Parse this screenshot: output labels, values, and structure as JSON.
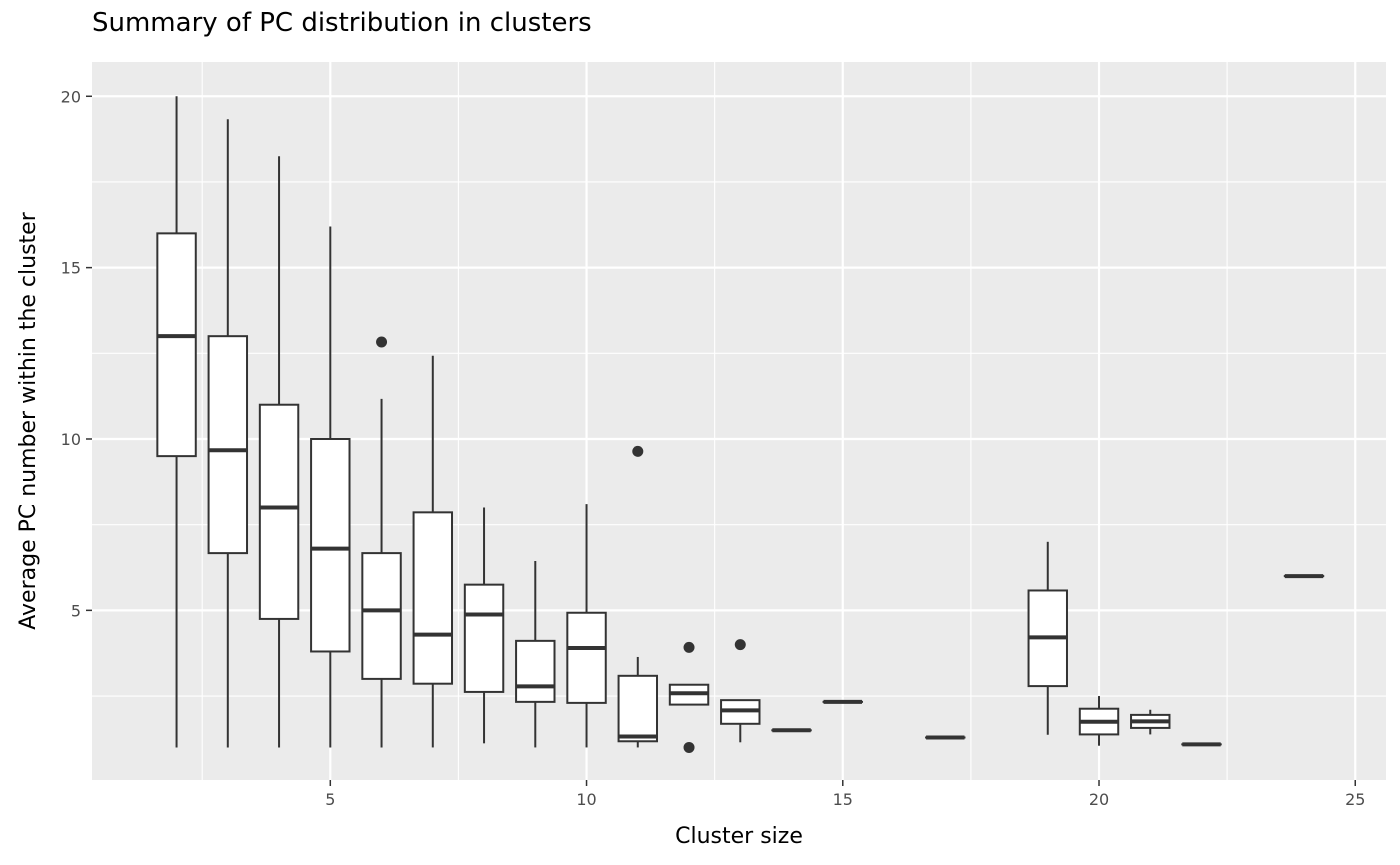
{
  "chart_data": {
    "type": "boxplot",
    "title": "Summary of PC distribution in clusters",
    "xlabel": "Cluster size",
    "ylabel": "Average PC number within the cluster",
    "xlim": [
      0.35,
      25.6
    ],
    "ylim": [
      0.05,
      21.0
    ],
    "xticks": [
      5,
      10,
      15,
      20,
      25
    ],
    "yticks": [
      5,
      10,
      15,
      20
    ],
    "grid": true,
    "panel_background": "#ebebeb",
    "grid_color": "#ffffff",
    "box_fill": "#ffffff",
    "box_line": "#333333",
    "boxes": [
      {
        "x": 2,
        "whisker_low": 1.0,
        "q1": 9.5,
        "median": 13.0,
        "q3": 16.0,
        "whisker_high": 20.0,
        "outliers": []
      },
      {
        "x": 3,
        "whisker_low": 1.0,
        "q1": 6.67,
        "median": 9.67,
        "q3": 13.0,
        "whisker_high": 19.33,
        "outliers": []
      },
      {
        "x": 4,
        "whisker_low": 1.0,
        "q1": 4.75,
        "median": 8.0,
        "q3": 11.0,
        "whisker_high": 18.25,
        "outliers": []
      },
      {
        "x": 5,
        "whisker_low": 1.0,
        "q1": 3.8,
        "median": 6.8,
        "q3": 10.0,
        "whisker_high": 16.2,
        "outliers": []
      },
      {
        "x": 6,
        "whisker_low": 1.0,
        "q1": 3.0,
        "median": 5.0,
        "q3": 6.67,
        "whisker_high": 11.17,
        "outliers": [
          12.83
        ]
      },
      {
        "x": 7,
        "whisker_low": 1.0,
        "q1": 2.86,
        "median": 4.29,
        "q3": 7.86,
        "whisker_high": 12.43,
        "outliers": []
      },
      {
        "x": 8,
        "whisker_low": 1.12,
        "q1": 2.62,
        "median": 4.88,
        "q3": 5.75,
        "whisker_high": 8.0,
        "outliers": []
      },
      {
        "x": 9,
        "whisker_low": 1.0,
        "q1": 2.33,
        "median": 2.78,
        "q3": 4.11,
        "whisker_high": 6.44,
        "outliers": []
      },
      {
        "x": 10,
        "whisker_low": 1.0,
        "q1": 2.3,
        "median": 3.9,
        "q3": 4.93,
        "whisker_high": 8.1,
        "outliers": []
      },
      {
        "x": 11,
        "whisker_low": 1.0,
        "q1": 1.18,
        "median": 1.32,
        "q3": 3.09,
        "whisker_high": 3.64,
        "outliers": [
          9.64
        ]
      },
      {
        "x": 12,
        "whisker_low": 2.25,
        "q1": 2.25,
        "median": 2.58,
        "q3": 2.83,
        "whisker_high": 2.83,
        "outliers": [
          3.92,
          1.0
        ]
      },
      {
        "x": 13,
        "whisker_low": 1.15,
        "q1": 1.69,
        "median": 2.08,
        "q3": 2.38,
        "whisker_high": 2.38,
        "outliers": [
          4.0
        ]
      },
      {
        "x": 14,
        "whisker_low": 1.5,
        "q1": 1.5,
        "median": 1.5,
        "q3": 1.5,
        "whisker_high": 1.5,
        "outliers": []
      },
      {
        "x": 15,
        "whisker_low": 2.33,
        "q1": 2.33,
        "median": 2.33,
        "q3": 2.33,
        "whisker_high": 2.33,
        "outliers": []
      },
      {
        "x": 17,
        "whisker_low": 1.29,
        "q1": 1.29,
        "median": 1.29,
        "q3": 1.29,
        "whisker_high": 1.29,
        "outliers": []
      },
      {
        "x": 19,
        "whisker_low": 1.37,
        "q1": 2.79,
        "median": 4.21,
        "q3": 5.58,
        "whisker_high": 7.0,
        "outliers": []
      },
      {
        "x": 20,
        "whisker_low": 1.05,
        "q1": 1.38,
        "median": 1.75,
        "q3": 2.13,
        "whisker_high": 2.5,
        "outliers": []
      },
      {
        "x": 21,
        "whisker_low": 1.38,
        "q1": 1.57,
        "median": 1.76,
        "q3": 1.95,
        "whisker_high": 2.1,
        "outliers": []
      },
      {
        "x": 22,
        "whisker_low": 1.09,
        "q1": 1.09,
        "median": 1.09,
        "q3": 1.09,
        "whisker_high": 1.09,
        "outliers": []
      },
      {
        "x": 24,
        "whisker_low": 6.0,
        "q1": 6.0,
        "median": 6.0,
        "q3": 6.0,
        "whisker_high": 6.0,
        "outliers": []
      }
    ]
  }
}
